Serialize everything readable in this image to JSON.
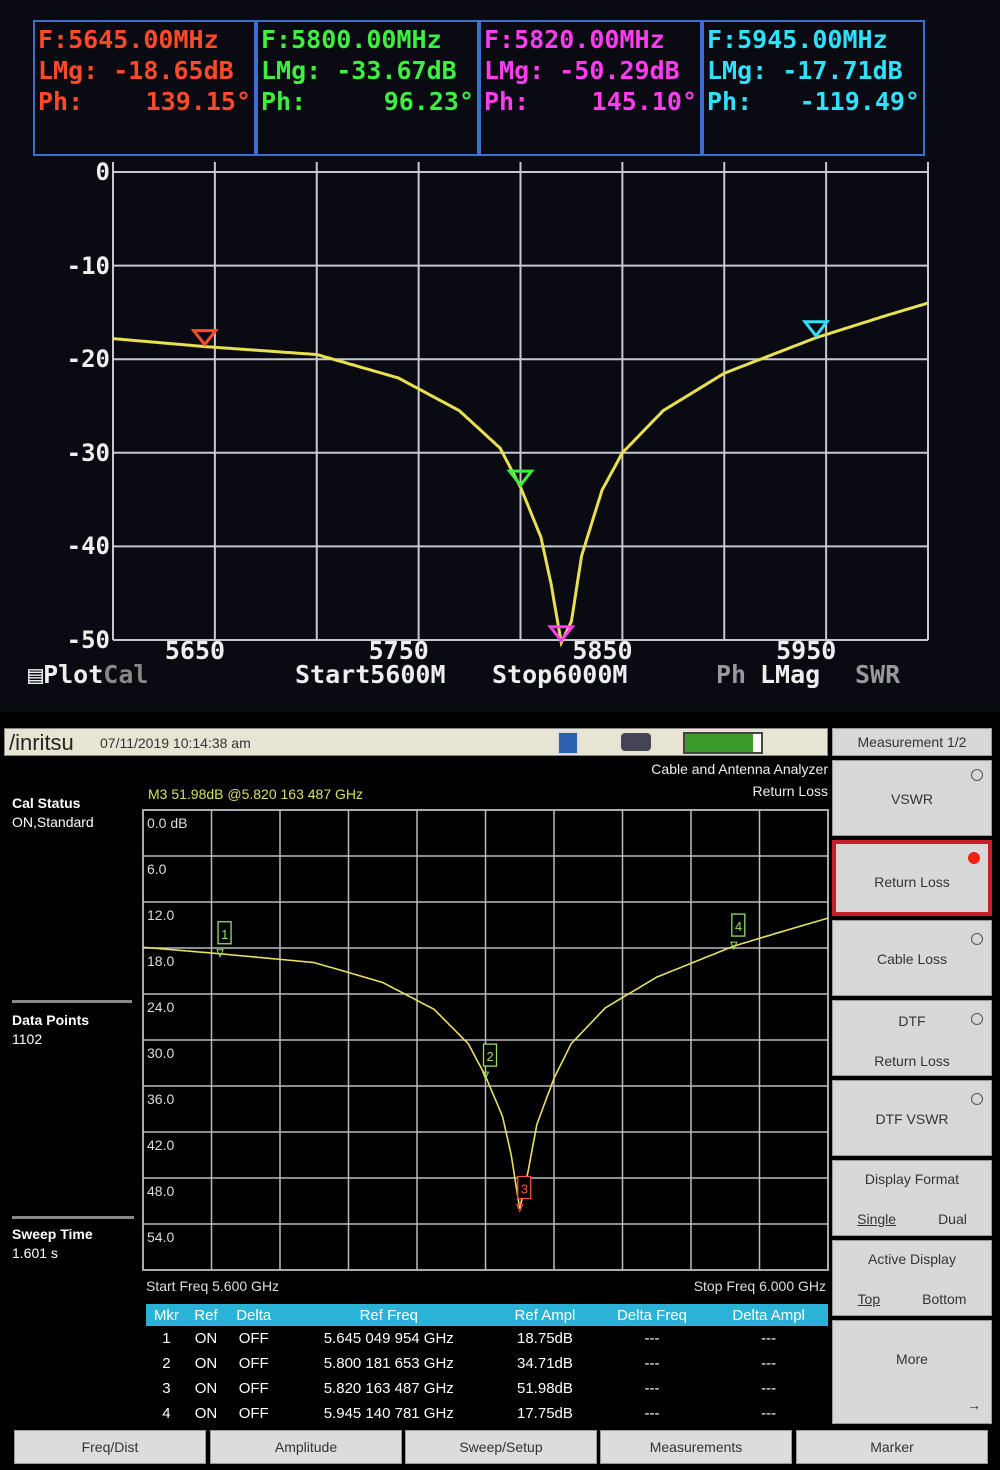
{
  "top_screen": {
    "markers": [
      {
        "freq": "F:5645.00MHz",
        "lmag": "LMg: -18.65dB",
        "ph_label": "Ph:",
        "ph": "139.15°",
        "color": "#ff4a2a"
      },
      {
        "freq": "F:5800.00MHz",
        "lmag": "LMg: -33.67dB",
        "ph_label": "Ph:",
        "ph": "96.23°",
        "color": "#3cf040"
      },
      {
        "freq": "F:5820.00MHz",
        "lmag": "LMg: -50.29dB",
        "ph_label": "Ph:",
        "ph": "145.10°",
        "color": "#ff3cf0"
      },
      {
        "freq": "F:5945.00MHz",
        "lmag": "LMg: -17.71dB",
        "ph_label": "Ph:",
        "ph": "-119.49°",
        "color": "#30e0ff"
      }
    ],
    "footer": {
      "plot": "Plot",
      "cal": "Cal",
      "start": "Start5600M",
      "stop": "Stop6000M",
      "ph": "Ph",
      "lmag": "LMag",
      "swr": "SWR"
    }
  },
  "chart_data": [
    {
      "type": "line",
      "ylim": [
        -50,
        0
      ],
      "xlim": [
        5600,
        6000
      ],
      "yticks": [
        "0",
        "-10",
        "-20",
        "-30",
        "-40",
        "-50"
      ],
      "xticks": [
        "5650",
        "5750",
        "5850",
        "5950"
      ],
      "grid": true,
      "line_color": "#e8e050",
      "x": [
        5600,
        5645,
        5700,
        5740,
        5770,
        5790,
        5800,
        5810,
        5815,
        5820,
        5825,
        5830,
        5840,
        5850,
        5870,
        5900,
        5945,
        5980,
        6000
      ],
      "y": [
        -17.8,
        -18.65,
        -19.5,
        -22,
        -25.5,
        -29.5,
        -33.67,
        -39,
        -44,
        -50.29,
        -48,
        -41,
        -34,
        -30,
        -25.5,
        -21.5,
        -17.71,
        -15.3,
        -14
      ]
    },
    {
      "type": "line",
      "ylim": [
        0,
        60
      ],
      "xlim": [
        5.6,
        6.0
      ],
      "yticks": [
        "0.0 dB",
        "6.0",
        "12.0",
        "18.0",
        "24.0",
        "30.0",
        "36.0",
        "42.0",
        "48.0",
        "54.0"
      ],
      "grid": true,
      "line_color": "#e8e060",
      "x": [
        5.6,
        5.645,
        5.7,
        5.74,
        5.77,
        5.79,
        5.8,
        5.81,
        5.815,
        5.82,
        5.825,
        5.83,
        5.84,
        5.85,
        5.87,
        5.9,
        5.945,
        5.98,
        6.0
      ],
      "y": [
        17.9,
        18.75,
        19.9,
        22.5,
        26,
        30.5,
        34.71,
        40,
        45,
        51.98,
        47,
        41,
        35,
        30.5,
        25.8,
        21.8,
        17.75,
        15.4,
        14.1
      ]
    }
  ],
  "bottom_screen": {
    "brand": "/inritsu",
    "datetime": "07/11/2019 10:14:38 am",
    "mode": "Cable and Antenna Analyzer",
    "measurement": "Return Loss",
    "marker_readout": "M3 51.98dB @5.820 163 487 GHz",
    "cal_status_label": "Cal Status",
    "cal_status": "ON,Standard",
    "data_points_label": "Data Points",
    "data_points": "1102",
    "sweep_time_label": "Sweep Time",
    "sweep_time": "1.601 s",
    "start_freq": "Start Freq 5.600 GHz",
    "stop_freq": "Stop Freq 6.000 GHz",
    "marker_labels": [
      "1",
      "2",
      "3",
      "4"
    ],
    "battery_level": 0.9,
    "menu": {
      "title": "Measurement 1/2",
      "vswr": "VSWR",
      "return_loss": "Return Loss",
      "cable_loss": "Cable Loss",
      "dtf_rl_1": "DTF",
      "dtf_rl_2": "Return Loss",
      "dtf_vswr": "DTF VSWR",
      "display_format": "Display Format",
      "single": "Single",
      "dual": "Dual",
      "active_display": "Active Display",
      "top": "Top",
      "bottom": "Bottom",
      "more": "More",
      "selected": "Return Loss"
    },
    "table": {
      "headers": [
        "Mkr",
        "Ref",
        "Delta",
        "Ref Freq",
        "Ref Ampl",
        "Delta Freq",
        "Delta Ampl"
      ],
      "rows": [
        [
          "1",
          "ON",
          "OFF",
          "5.645 049 954 GHz",
          "18.75dB",
          "---",
          "---"
        ],
        [
          "2",
          "ON",
          "OFF",
          "5.800 181 653 GHz",
          "34.71dB",
          "---",
          "---"
        ],
        [
          "3",
          "ON",
          "OFF",
          "5.820 163 487 GHz",
          "51.98dB",
          "---",
          "---"
        ],
        [
          "4",
          "ON",
          "OFF",
          "5.945 140 781 GHz",
          "17.75dB",
          "---",
          "---"
        ]
      ]
    },
    "soft_keys": [
      "Freq/Dist",
      "Amplitude",
      "Sweep/Setup",
      "Measurements",
      "Marker"
    ]
  }
}
